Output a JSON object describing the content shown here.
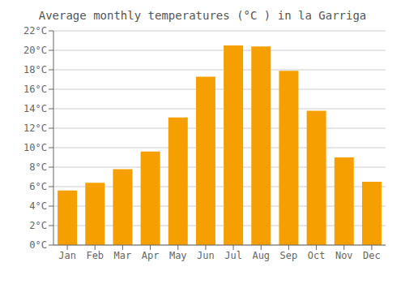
{
  "chart_data": {
    "type": "bar",
    "title": "Average monthly temperatures (°C ) in la Garriga",
    "categories": [
      "Jan",
      "Feb",
      "Mar",
      "Apr",
      "May",
      "Jun",
      "Jul",
      "Aug",
      "Sep",
      "Oct",
      "Nov",
      "Dec"
    ],
    "values": [
      5.6,
      6.4,
      7.8,
      9.6,
      13.1,
      17.3,
      20.5,
      20.4,
      17.9,
      13.8,
      9.0,
      6.5
    ],
    "color": "#F5A000",
    "ylim": [
      0,
      22
    ],
    "yticks": [
      {
        "value": 0,
        "label": "0°C"
      },
      {
        "value": 2,
        "label": "2°C"
      },
      {
        "value": 4,
        "label": "4°C"
      },
      {
        "value": 6,
        "label": "6°C"
      },
      {
        "value": 8,
        "label": "8°C"
      },
      {
        "value": 10,
        "label": "10°C"
      },
      {
        "value": 12,
        "label": "12°C"
      },
      {
        "value": 14,
        "label": "14°C"
      },
      {
        "value": 16,
        "label": "16°C"
      },
      {
        "value": 18,
        "label": "18°C"
      },
      {
        "value": 20,
        "label": "20°C"
      },
      {
        "value": 22,
        "label": "22°C"
      }
    ],
    "grid": true
  }
}
